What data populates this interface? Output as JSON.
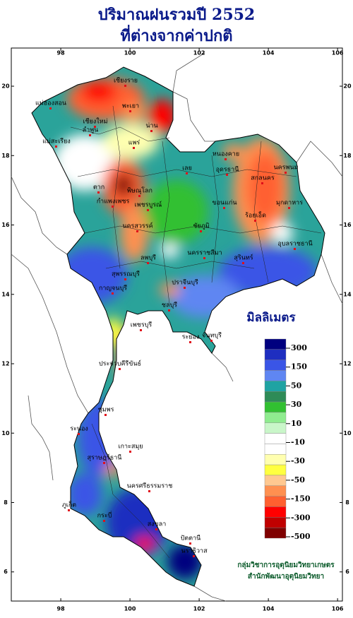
{
  "title": "ปริมาณฝนรวมปี  2552",
  "subtitle": "ที่ต่างจากค่าปกติ",
  "map": {
    "lon_range": [
      96.57,
      106.14
    ],
    "lat_range": [
      21.1,
      5.16
    ],
    "lon_ticks": [
      98,
      100,
      102,
      104,
      106
    ],
    "lat_ticks": [
      20,
      18,
      16,
      14,
      12,
      10,
      8,
      6
    ]
  },
  "places": [
    {
      "name": "เชียงราย"
    },
    {
      "name": "แม่ฮ่องสอน"
    },
    {
      "name": "เชียงใหม่"
    },
    {
      "name": "ลำพูน"
    },
    {
      "name": "พะเยา"
    },
    {
      "name": "น่าน"
    },
    {
      "name": "แพร่"
    },
    {
      "name": "แม่สะเรียง"
    },
    {
      "name": "ตาก"
    },
    {
      "name": "พิษณุโลก"
    },
    {
      "name": "กำแพงเพชร"
    },
    {
      "name": "เพชรบูรณ์"
    },
    {
      "name": "นครสวรรค์"
    },
    {
      "name": "หนองคาย"
    },
    {
      "name": "อุดรธานี"
    },
    {
      "name": "เลย"
    },
    {
      "name": "สกลนคร"
    },
    {
      "name": "นครพนม"
    },
    {
      "name": "มุกดาหาร"
    },
    {
      "name": "ขอนแก่น"
    },
    {
      "name": "ชัยภูมิ"
    },
    {
      "name": "ร้อยเอ็ด"
    },
    {
      "name": "อุบลราชธานี"
    },
    {
      "name": "สุรินทร์"
    },
    {
      "name": "นครราชสีมา"
    },
    {
      "name": "ลพบุรี"
    },
    {
      "name": "สุพรรณบุรี"
    },
    {
      "name": "กาญจนบุรี"
    },
    {
      "name": "ปราจีนบุรี"
    },
    {
      "name": "ชลบุรี"
    },
    {
      "name": "ระยอง"
    },
    {
      "name": "จันทบุรี"
    },
    {
      "name": "เพชรบุรี"
    },
    {
      "name": "ประจวบคีรีขันธ์"
    },
    {
      "name": "ชุมพร"
    },
    {
      "name": "ระนอง"
    },
    {
      "name": "สุราษฎร์ธานี"
    },
    {
      "name": "เกาะสมุย"
    },
    {
      "name": "ภูเก็ต"
    },
    {
      "name": "กระบี่"
    },
    {
      "name": "นครศรีธรรมราช"
    },
    {
      "name": "สงขลา"
    },
    {
      "name": "ปัตตานี"
    },
    {
      "name": "นราธิวาส"
    }
  ],
  "legend": {
    "title": "มิลลิเมตร",
    "colors": [
      "#00007f",
      "#1e2ec0",
      "#3a55e6",
      "#5f86f2",
      "#1fa3a3",
      "#2e8b57",
      "#31c031",
      "#8fec8f",
      "#c9f6c9",
      "#ffffff",
      "#ffffff",
      "#ffffb0",
      "#ffff40",
      "#ffc890",
      "#ff9050",
      "#ff6030",
      "#ff0000",
      "#c00000",
      "#7f0000"
    ],
    "levels": [
      300,
      150,
      50,
      30,
      10,
      -10,
      -30,
      -50,
      -150,
      -300,
      -500
    ]
  },
  "credits": [
    "กลุ่มวิชาการอุตุนิยมวิทยาเกษตร",
    "สำนักพัฒนาอุตุนิยมวิทยา"
  ]
}
